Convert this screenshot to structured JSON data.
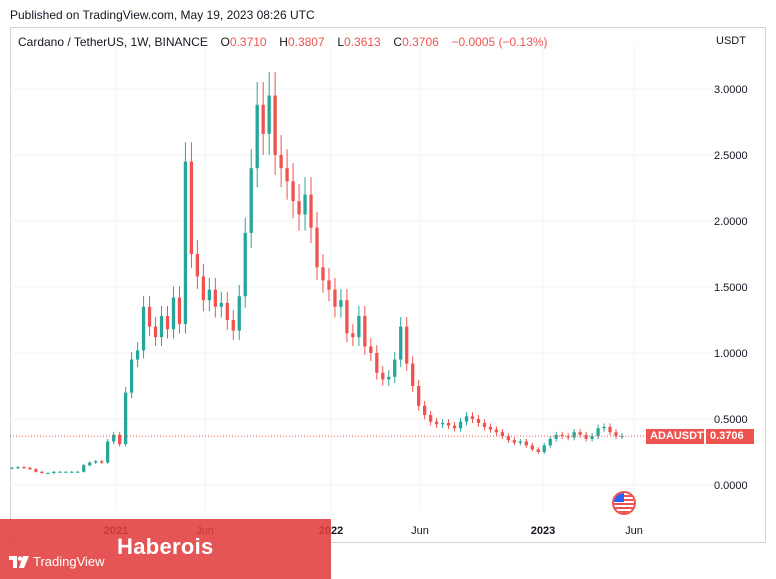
{
  "header": {
    "published": "Published on TradingView.com, May 19, 2023 08:26 UTC"
  },
  "legend": {
    "symbol": "Cardano / TetherUS, 1W, BINANCE",
    "o_label": "O",
    "o_value": "0.3710",
    "h_label": "H",
    "h_value": "0.3807",
    "l_label": "L",
    "l_value": "0.3613",
    "c_label": "C",
    "c_value": "0.3706",
    "change": "−0.0005 (−0.13%)"
  },
  "axis": {
    "currency": "USDT"
  },
  "price_tag": {
    "symbol": "ADAUSDT",
    "value": "0.3706"
  },
  "branding": {
    "banner_text": "Haberois",
    "logo_text": "TradingView"
  },
  "icons": {
    "flag": "us-flag-icon",
    "logo": "tradingview-logo-icon"
  },
  "colors": {
    "up": "#26a69a",
    "down": "#ef5350",
    "grid": "#f0f3fa",
    "banner": "#e23d3d"
  },
  "chart_data": {
    "type": "candlestick",
    "symbol": "ADAUSDT",
    "interval": "1W",
    "yticks": [
      "3.0000",
      "2.5000",
      "2.0000",
      "1.5000",
      "1.0000",
      "0.5000",
      "0.0000"
    ],
    "xticks": [
      "2021",
      "Jun",
      "2022",
      "Jun",
      "2023",
      "Jun"
    ],
    "last_price": 0.3706,
    "ylim": [
      -0.1,
      3.1
    ],
    "grid": true,
    "close_series_approx": [
      0.13,
      0.135,
      0.13,
      0.12,
      0.1,
      0.09,
      0.09,
      0.1,
      0.1,
      0.1,
      0.1,
      0.1,
      0.15,
      0.17,
      0.18,
      0.17,
      0.33,
      0.38,
      0.31,
      0.7,
      0.95,
      1.02,
      1.35,
      1.2,
      1.12,
      1.28,
      1.18,
      1.42,
      1.22,
      2.45,
      1.75,
      1.58,
      1.4,
      1.48,
      1.35,
      1.38,
      1.25,
      1.17,
      1.43,
      1.91,
      2.4,
      2.88,
      2.66,
      2.95,
      2.5,
      2.4,
      2.3,
      2.15,
      2.05,
      2.2,
      1.95,
      1.65,
      1.55,
      1.48,
      1.35,
      1.4,
      1.15,
      1.12,
      1.28,
      1.05,
      1.0,
      0.85,
      0.8,
      0.82,
      0.95,
      1.2,
      0.92,
      0.75,
      0.6,
      0.53,
      0.48,
      0.46,
      0.47,
      0.45,
      0.43,
      0.48,
      0.52,
      0.5,
      0.47,
      0.44,
      0.42,
      0.4,
      0.37,
      0.34,
      0.32,
      0.33,
      0.3,
      0.27,
      0.25,
      0.3,
      0.35,
      0.38,
      0.37,
      0.36,
      0.4,
      0.38,
      0.35,
      0.37,
      0.43,
      0.44,
      0.4,
      0.37,
      0.3706
    ]
  }
}
